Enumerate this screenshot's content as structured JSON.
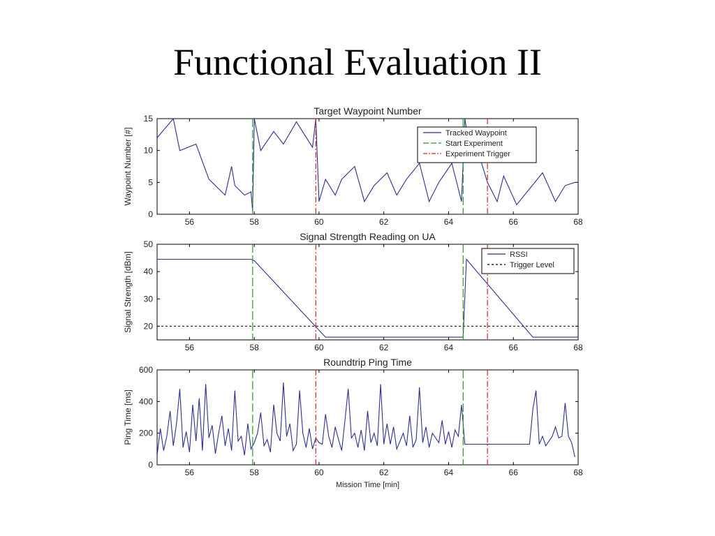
{
  "slide": {
    "title": "Functional Evaluation II"
  },
  "colors": {
    "waypoint": "#2d2f8f",
    "start": "#22a022",
    "trigger": "#e02020",
    "trigger_level": "#000000"
  },
  "chart_data": [
    {
      "type": "line",
      "title": "Target Waypoint Number",
      "ylabel": "Waypoint Number [#]",
      "xlabel": "",
      "xlim": [
        55,
        68
      ],
      "ylim": [
        0,
        15
      ],
      "xticks": [
        56,
        58,
        60,
        62,
        64,
        66,
        68
      ],
      "yticks": [
        0,
        5,
        10,
        15
      ],
      "legend": {
        "placement": "top-right",
        "entries": [
          "Tracked Waypoint",
          "Start Experiment",
          "Experiment Trigger"
        ]
      },
      "series": [
        {
          "name": "Tracked Waypoint",
          "style": "solid",
          "x": [
            55.0,
            55.5,
            55.7,
            56.2,
            56.6,
            57.1,
            57.3,
            57.4,
            57.7,
            57.9,
            57.95,
            58.0,
            58.2,
            58.6,
            58.9,
            59.3,
            59.8,
            59.9,
            60.0,
            60.2,
            60.5,
            60.7,
            61.1,
            61.4,
            61.7,
            62.1,
            62.4,
            62.7,
            63.1,
            63.4,
            63.7,
            64.1,
            64.4,
            64.5,
            64.6,
            64.9,
            65.2,
            65.5,
            65.7,
            66.1,
            66.5,
            66.9,
            67.3,
            67.6,
            67.9,
            68.0
          ],
          "y": [
            12,
            15,
            10,
            11,
            5.5,
            3,
            7.5,
            4.5,
            3,
            3.5,
            0.5,
            15,
            10,
            13,
            11,
            14.5,
            10.5,
            15,
            2,
            5.5,
            3,
            5.5,
            7.5,
            2,
            4.5,
            6.5,
            3,
            5.5,
            8,
            2,
            5,
            8,
            2,
            15,
            12,
            10,
            5,
            2,
            6,
            1.5,
            4,
            6.5,
            2,
            4.5,
            5,
            5
          ]
        },
        {
          "name": "Start Experiment",
          "style": "dashed-vertical",
          "x": [
            57.95,
            64.45
          ]
        },
        {
          "name": "Experiment Trigger",
          "style": "dashdot-vertical",
          "x": [
            59.9,
            65.2
          ]
        }
      ]
    },
    {
      "type": "line",
      "title": "Signal Strength Reading on UA",
      "ylabel": "Signal Strength [dBm]",
      "xlabel": "",
      "xlim": [
        55,
        68
      ],
      "ylim": [
        15,
        50
      ],
      "xticks": [
        56,
        58,
        60,
        62,
        64,
        66,
        68
      ],
      "yticks": [
        20,
        30,
        40,
        50
      ],
      "legend": {
        "placement": "top-right",
        "entries": [
          "RSSI",
          "Trigger Level"
        ]
      },
      "series": [
        {
          "name": "RSSI",
          "style": "solid",
          "x": [
            55.0,
            57.6,
            57.9,
            58.0,
            60.2,
            64.4,
            64.45,
            64.55,
            66.6,
            68.0
          ],
          "y": [
            44.5,
            44.5,
            44.5,
            44.0,
            16.0,
            16.0,
            16.0,
            44.5,
            16.0,
            16.0
          ]
        },
        {
          "name": "Trigger Level",
          "style": "dashed",
          "x": [
            55,
            68
          ],
          "y": [
            20,
            20
          ]
        },
        {
          "name": "Start Experiment",
          "style": "dashed-vertical",
          "x": [
            57.95,
            64.45
          ]
        },
        {
          "name": "Experiment Trigger",
          "style": "dashdot-vertical",
          "x": [
            59.9,
            65.2
          ]
        }
      ]
    },
    {
      "type": "line",
      "title": "Roundtrip Ping Time",
      "ylabel": "Ping Time [ms]",
      "xlabel": "Mission Time [min]",
      "xlim": [
        55,
        68
      ],
      "ylim": [
        0,
        600
      ],
      "xticks": [
        56,
        58,
        60,
        62,
        64,
        66,
        68
      ],
      "yticks": [
        0,
        200,
        400,
        600
      ],
      "legend": null,
      "series": [
        {
          "name": "",
          "style": "solid",
          "x": [
            55.0,
            55.1,
            55.2,
            55.3,
            55.4,
            55.5,
            55.6,
            55.7,
            55.8,
            55.9,
            56.0,
            56.1,
            56.2,
            56.3,
            56.4,
            56.5,
            56.6,
            56.7,
            56.8,
            56.9,
            57.0,
            57.1,
            57.2,
            57.3,
            57.4,
            57.5,
            57.6,
            57.7,
            57.8,
            57.9,
            58.0,
            58.1,
            58.2,
            58.3,
            58.4,
            58.5,
            58.6,
            58.7,
            58.8,
            58.9,
            59.0,
            59.1,
            59.2,
            59.3,
            59.4,
            59.5,
            59.6,
            59.7,
            59.8,
            59.9,
            60.0,
            60.1,
            60.2,
            60.3,
            60.4,
            60.5,
            60.6,
            60.7,
            60.8,
            60.9,
            61.0,
            61.1,
            61.2,
            61.3,
            61.4,
            61.5,
            61.6,
            61.7,
            61.8,
            61.9,
            62.0,
            62.1,
            62.2,
            62.3,
            62.4,
            62.5,
            62.6,
            62.7,
            62.8,
            62.9,
            63.0,
            63.1,
            63.2,
            63.3,
            63.4,
            63.5,
            63.6,
            63.7,
            63.8,
            63.9,
            64.0,
            64.1,
            64.2,
            64.3,
            64.4,
            64.5,
            65.0,
            65.5,
            66.0,
            66.5,
            66.6,
            66.7,
            66.8,
            66.9,
            67.0,
            67.2,
            67.3,
            67.4,
            67.5,
            67.6,
            67.7,
            67.8,
            67.9
          ],
          "y": [
            60,
            230,
            90,
            180,
            340,
            120,
            260,
            480,
            110,
            210,
            80,
            380,
            150,
            420,
            90,
            510,
            170,
            250,
            70,
            200,
            310,
            120,
            230,
            90,
            470,
            150,
            180,
            60,
            260,
            100,
            140,
            200,
            330,
            120,
            160,
            80,
            380,
            200,
            150,
            520,
            180,
            260,
            90,
            130,
            470,
            200,
            110,
            230,
            100,
            170,
            140,
            130,
            320,
            180,
            110,
            240,
            160,
            90,
            280,
            480,
            170,
            200,
            110,
            220,
            90,
            340,
            140,
            200,
            120,
            510,
            130,
            260,
            130,
            240,
            100,
            150,
            200,
            120,
            310,
            110,
            160,
            490,
            140,
            240,
            110,
            200,
            170,
            140,
            280,
            130,
            210,
            110,
            220,
            180,
            380,
            130,
            130,
            130,
            130,
            130,
            350,
            470,
            130,
            180,
            120,
            180,
            240,
            170,
            180,
            390,
            180,
            140,
            50
          ]
        },
        {
          "name": "Start Experiment",
          "style": "dashed-vertical",
          "x": [
            57.95,
            64.45
          ]
        },
        {
          "name": "Experiment Trigger",
          "style": "dashdot-vertical",
          "x": [
            59.9,
            65.2
          ]
        }
      ]
    }
  ]
}
